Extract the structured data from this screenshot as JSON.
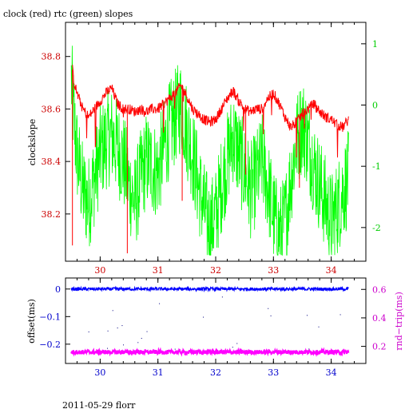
{
  "chart_data": [
    {
      "type": "line",
      "title": "clock (red) rtc (green) slopes",
      "xlabel": "",
      "ylabel": "clockslope",
      "y2label": "",
      "xlim": [
        29.4,
        34.6
      ],
      "ylim": [
        38.02,
        38.93
      ],
      "y2lim": [
        -2.55,
        1.35
      ],
      "x_ticks": [
        "30",
        "31",
        "32",
        "33",
        "34"
      ],
      "y_ticks": [
        "38.2",
        "38.4",
        "38.6",
        "38.8"
      ],
      "y2_ticks": [
        "-2",
        "-1",
        "0",
        "1"
      ],
      "colors": {
        "axes": "#000000",
        "left_axis_labels": "#cc0000",
        "right_axis_labels": "#00cc00"
      },
      "series": [
        {
          "color": "#ff0000",
          "axis": "left",
          "x": [
            29.52,
            29.55,
            29.6,
            29.7,
            29.8,
            29.9,
            30.0,
            30.1,
            30.2,
            30.3,
            30.4,
            30.5,
            30.6,
            30.7,
            30.8,
            30.9,
            31.0,
            31.1,
            31.2,
            31.3,
            31.4,
            31.5,
            31.6,
            31.7,
            31.8,
            31.9,
            32.0,
            32.1,
            32.2,
            32.3,
            32.4,
            32.5,
            32.6,
            32.7,
            32.8,
            32.9,
            33.0,
            33.1,
            33.2,
            33.3,
            33.4,
            33.5,
            33.6,
            33.7,
            33.8,
            33.9,
            34.0,
            34.1,
            34.2,
            34.3
          ],
          "values": [
            38.75,
            38.7,
            38.66,
            38.6,
            38.57,
            38.6,
            38.63,
            38.66,
            38.68,
            38.62,
            38.6,
            38.6,
            38.59,
            38.6,
            38.59,
            38.6,
            38.6,
            38.62,
            38.64,
            38.66,
            38.69,
            38.65,
            38.6,
            38.58,
            38.56,
            38.55,
            38.56,
            38.6,
            38.64,
            38.67,
            38.63,
            38.6,
            38.59,
            38.6,
            38.6,
            38.64,
            38.66,
            38.62,
            38.57,
            38.53,
            38.55,
            38.58,
            38.6,
            38.62,
            38.59,
            38.57,
            38.56,
            38.54,
            38.53,
            38.56
          ]
        },
        {
          "color": "#00ff00",
          "axis": "right",
          "x": [
            29.5,
            29.55,
            29.6,
            29.7,
            29.8,
            29.9,
            30.0,
            30.1,
            30.2,
            30.3,
            30.4,
            30.5,
            30.6,
            30.7,
            30.8,
            30.9,
            31.0,
            31.1,
            31.2,
            31.3,
            31.4,
            31.5,
            31.6,
            31.7,
            31.8,
            31.9,
            32.0,
            32.1,
            32.2,
            32.3,
            32.4,
            32.5,
            32.6,
            32.7,
            32.8,
            32.9,
            33.0,
            33.1,
            33.2,
            33.3,
            33.4,
            33.5,
            33.6,
            33.7,
            33.8,
            33.9,
            34.0,
            34.1,
            34.2,
            34.3
          ],
          "values": [
            0.4,
            -0.3,
            -0.8,
            -1.4,
            -1.6,
            -1.2,
            -0.8,
            -0.6,
            -0.5,
            -0.7,
            -0.9,
            -1.3,
            -1.6,
            -1.2,
            -0.9,
            -1.0,
            -1.1,
            -0.7,
            -0.4,
            -0.2,
            0.0,
            -0.4,
            -0.8,
            -1.3,
            -1.7,
            -2.0,
            -1.8,
            -1.3,
            -0.9,
            -0.5,
            -0.8,
            -1.1,
            -1.4,
            -1.2,
            -0.9,
            -1.3,
            -1.8,
            -2.1,
            -1.9,
            -1.2,
            -0.6,
            -0.3,
            -0.6,
            -1.0,
            -1.3,
            -1.6,
            -1.9,
            -1.7,
            -1.4,
            -1.2
          ]
        }
      ]
    },
    {
      "type": "scatter",
      "xlabel": "",
      "ylabel": "offset(ms)",
      "y2label": "rnd−trip(ms)",
      "xlim": [
        29.4,
        34.6
      ],
      "ylim": [
        -0.27,
        0.04
      ],
      "y2lim": [
        0.08,
        0.68
      ],
      "x_ticks": [
        "30",
        "31",
        "32",
        "33",
        "34"
      ],
      "y_ticks": [
        "0",
        "−0.1",
        "−0.2"
      ],
      "y2_ticks": [
        "0.6",
        "0.4",
        "0.2"
      ],
      "colors": {
        "axes": "#000000",
        "left_axis_labels": "#0000cc",
        "right_axis_labels": "#cc00cc"
      },
      "series": [
        {
          "color": "#0000ff",
          "axis": "left",
          "x_range": [
            29.5,
            34.3
          ],
          "level": 0.0
        },
        {
          "color": "#ff00ff",
          "axis": "right",
          "x_range": [
            29.5,
            34.3
          ],
          "level": 0.16
        }
      ]
    }
  ],
  "footer": {
    "text": "2011-05-29 florr"
  }
}
